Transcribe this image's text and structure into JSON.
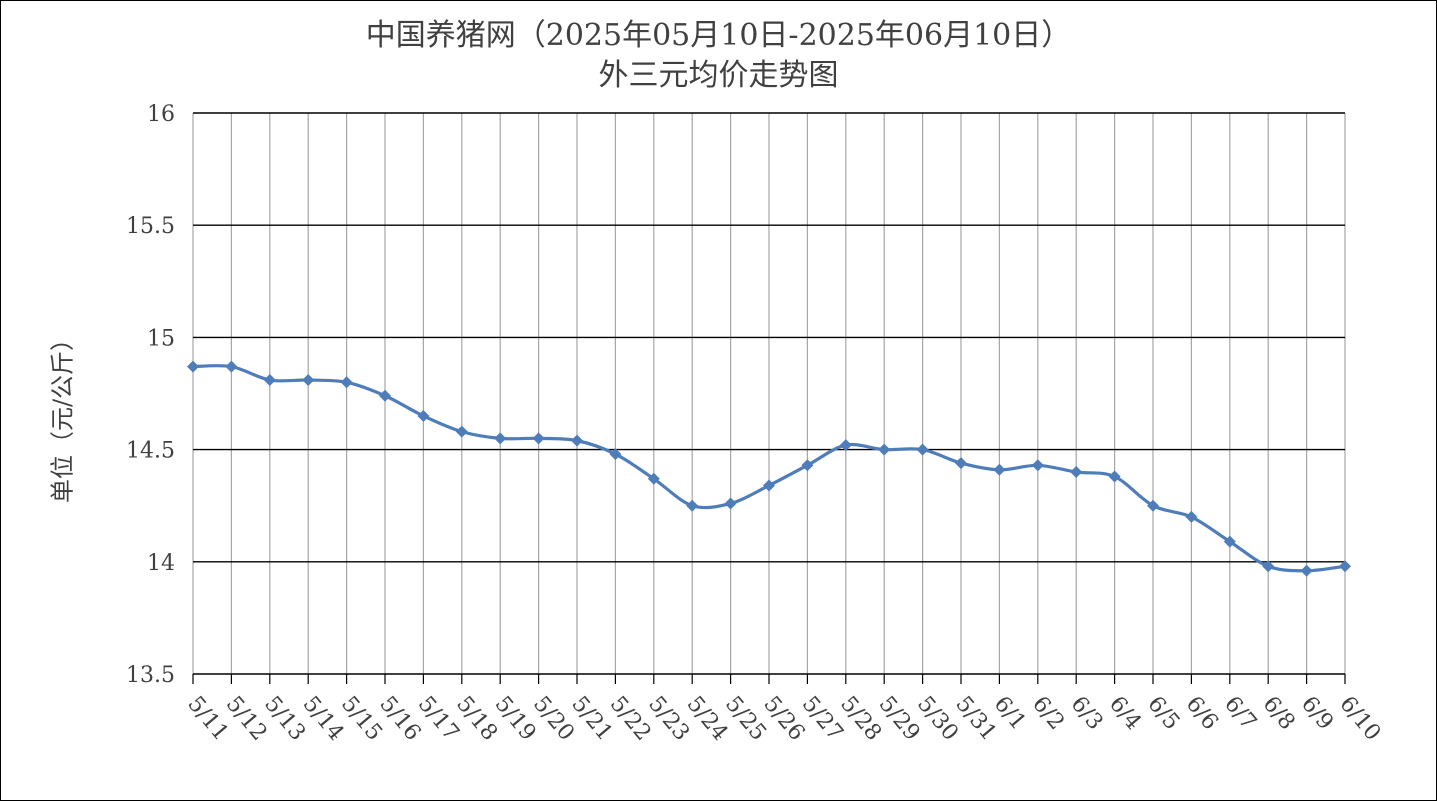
{
  "title_line1": "中国养猪网（2025年05月10日-2025年06月10日）",
  "title_line2": "外三元均价走势图",
  "chart_data": {
    "type": "line",
    "title": "中国养猪网（2025年05月10日-2025年06月10日） 外三元均价走势图",
    "xlabel": "",
    "ylabel": "单位（元/公斤）",
    "ylim": [
      13.5,
      16
    ],
    "yticks": [
      "16",
      "15.5",
      "15",
      "14.5",
      "14",
      "13.5"
    ],
    "ytick_values": [
      16,
      15.5,
      15,
      14.5,
      14,
      13.5
    ],
    "grid": true,
    "legend": "none",
    "line_color": "#4F7DB9",
    "categories": [
      "5/11",
      "5/12",
      "5/13",
      "5/14",
      "5/15",
      "5/16",
      "5/17",
      "5/18",
      "5/19",
      "5/20",
      "5/21",
      "5/22",
      "5/23",
      "5/24",
      "5/25",
      "5/26",
      "5/27",
      "5/28",
      "5/29",
      "5/30",
      "5/31",
      "6/1",
      "6/2",
      "6/3",
      "6/4",
      "6/5",
      "6/6",
      "6/7",
      "6/8",
      "6/9",
      "6/10"
    ],
    "series": [
      {
        "values": [
          14.87,
          14.87,
          14.81,
          14.81,
          14.8,
          14.74,
          14.65,
          14.58,
          14.55,
          14.55,
          14.54,
          14.48,
          14.37,
          14.25,
          14.26,
          14.34,
          14.43,
          14.52,
          14.5,
          14.5,
          14.44,
          14.41,
          14.43,
          14.4,
          14.38,
          14.25,
          14.2,
          14.09,
          13.98,
          13.96,
          13.98
        ]
      }
    ]
  }
}
